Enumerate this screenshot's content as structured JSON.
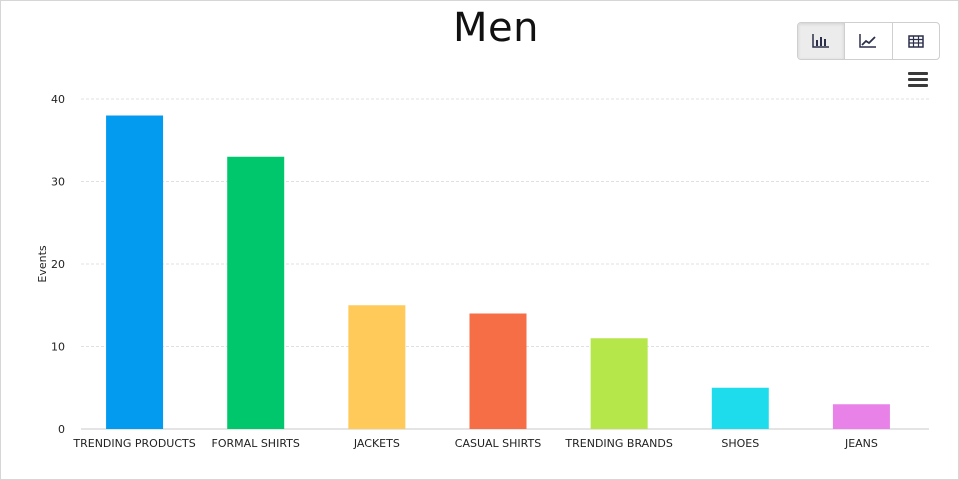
{
  "chart_data": {
    "type": "bar",
    "title": "Men",
    "xlabel": "",
    "ylabel": "Events",
    "categories": [
      "TRENDING PRODUCTS",
      "FORMAL SHIRTS",
      "JACKETS",
      "CASUAL SHIRTS",
      "TRENDING BRANDS",
      "SHOES",
      "JEANS"
    ],
    "values": [
      38,
      33,
      15,
      14,
      11,
      5,
      3
    ],
    "colors": [
      "#039BEF",
      "#00C76B",
      "#FFCA5A",
      "#F56E46",
      "#B5E64A",
      "#1EDCEC",
      "#E882E8"
    ],
    "ylim": [
      0,
      40
    ],
    "yticks": [
      0,
      10,
      20,
      30,
      40
    ],
    "grid": true,
    "legend": "none"
  },
  "toolbar": {
    "buttons": [
      {
        "icon": "bar-chart-icon",
        "active": true
      },
      {
        "icon": "line-chart-icon",
        "active": false
      },
      {
        "icon": "table-icon",
        "active": false
      }
    ],
    "menu_icon": "hamburger-menu-icon"
  }
}
